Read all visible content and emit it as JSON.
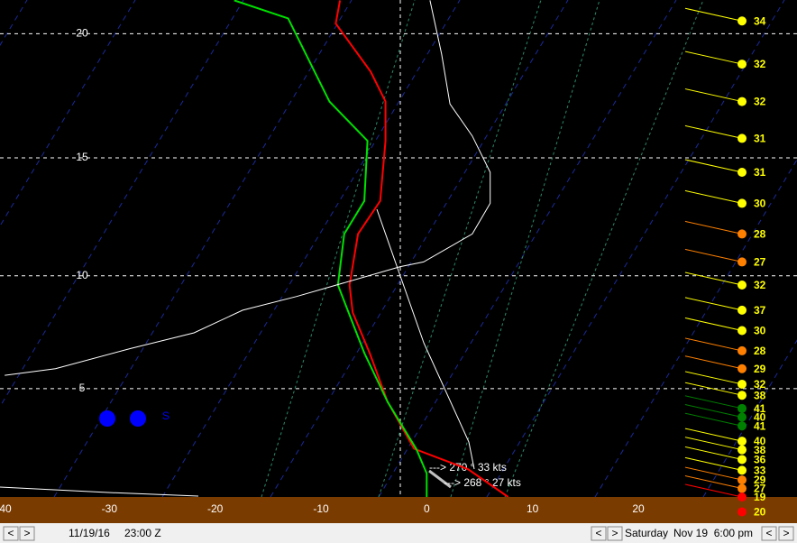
{
  "chart_data": {
    "type": "skewt",
    "xlim": [
      -40,
      35
    ],
    "xticks": [
      -40,
      -30,
      -20,
      -10,
      0,
      10,
      20
    ],
    "ylim": [
      0,
      21.3
    ],
    "yticks": [
      5,
      10,
      15,
      20
    ],
    "grid": true,
    "series": [
      {
        "color": "#ff0000",
        "x": [
          7.7,
          3.9,
          -1.2,
          -3.7,
          -5.4,
          -7.0,
          -7.3,
          -6.5,
          -4.4,
          -3.9,
          -3.9,
          -5.3,
          -8.6,
          -8.2
        ],
        "values": [
          0,
          1.3,
          2.25,
          4.4,
          6.6,
          8.4,
          9.6,
          11.8,
          13.2,
          15.7,
          17.3,
          18.5,
          20.4,
          21.3
        ]
      },
      {
        "color": "#00e000",
        "x": [
          0,
          0,
          -1.0,
          -3.7,
          -5.9,
          -8.4,
          -7.8,
          -5.9,
          -5.6,
          -9.2,
          -13.1,
          -18.2
        ],
        "values": [
          0,
          1.1,
          2.25,
          4.4,
          6.6,
          9.6,
          11.8,
          13.2,
          15.7,
          17.3,
          20.6,
          21.3
        ]
      },
      {
        "color": "#ffffff",
        "x": [
          -39.9,
          -35.1,
          -28.0,
          -22.0,
          -17.4,
          -12.3,
          -2.5,
          -0.3,
          4.3,
          6.0,
          6.0,
          4.3,
          2.2,
          1.4,
          0.3
        ],
        "values": [
          5.6,
          5.9,
          6.8,
          7.5,
          8.5,
          9.1,
          10.4,
          10.6,
          11.8,
          13.1,
          14.4,
          15.9,
          17.2,
          19.2,
          21.3
        ]
      }
    ],
    "winds": {
      "heights": [
        20.5,
        18.8,
        17.3,
        15.8,
        14.4,
        13.1,
        11.8,
        10.6,
        9.6,
        8.5,
        7.6,
        6.7,
        5.9,
        5.2,
        4.7,
        4.1,
        3.7,
        3.3,
        2.6,
        2.2,
        1.75,
        1.25,
        0.8,
        0.4,
        0,
        -0.7
      ],
      "speeds": [
        34,
        32,
        32,
        31,
        31,
        30,
        28,
        27,
        32,
        37,
        30,
        28,
        29,
        32,
        38,
        41,
        40,
        41,
        40,
        38,
        36,
        33,
        29,
        27,
        19,
        20
      ],
      "colors": [
        "#ffff00",
        "#ffff00",
        "#ffff00",
        "#ffff00",
        "#ffff00",
        "#ffff00",
        "#ff8000",
        "#ff8000",
        "#ffff00",
        "#ffff00",
        "#ffff00",
        "#ff8000",
        "#ff8000",
        "#ffff00",
        "#ffff00",
        "#008000",
        "#008000",
        "#008000",
        "#ffff00",
        "#ffff00",
        "#ffff00",
        "#ffff00",
        "#ff8000",
        "#ff8000",
        "#ff0000",
        "#ff0000"
      ]
    },
    "annotations": [
      "---> 270 ° 33 kts",
      "---> 268 ° 27 kts",
      "S"
    ]
  },
  "status_bar": {
    "buttons": [
      "<",
      ">"
    ],
    "date": "11/19/16",
    "time": "23:00 Z",
    "day": "Saturday",
    "datetime": "Nov 19  6:00 pm"
  }
}
